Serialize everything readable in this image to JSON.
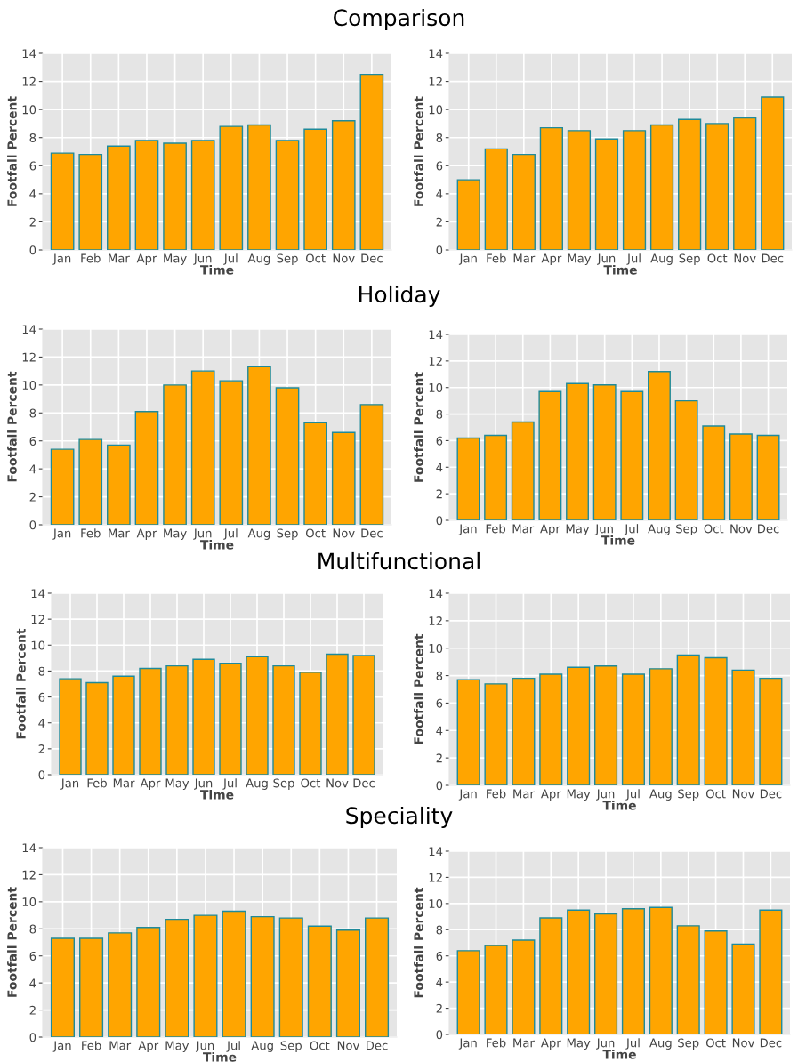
{
  "chart_data": [
    {
      "type": "bar",
      "title": "Comparison",
      "xlabel": "Time",
      "ylabel": "Footfall Percent",
      "categories": [
        "Jan",
        "Feb",
        "Mar",
        "Apr",
        "May",
        "Jun",
        "Jul",
        "Aug",
        "Sep",
        "Oct",
        "Nov",
        "Dec"
      ],
      "color": "#ffa500",
      "ylim": [
        0,
        14
      ],
      "yticks": [
        0,
        2,
        4,
        6,
        8,
        10,
        12,
        14
      ],
      "grid": true,
      "values": [
        6.9,
        6.8,
        7.4,
        7.8,
        7.6,
        7.8,
        8.8,
        8.9,
        7.8,
        8.6,
        9.2,
        12.5
      ]
    },
    {
      "type": "bar",
      "xlabel": "Time",
      "ylabel": "Footfall Percent",
      "categories": [
        "Jan",
        "Feb",
        "Mar",
        "Apr",
        "May",
        "Jun",
        "Jul",
        "Aug",
        "Sep",
        "Oct",
        "Nov",
        "Dec"
      ],
      "color": "#ffa500",
      "ylim": [
        0,
        14
      ],
      "yticks": [
        0,
        2,
        4,
        6,
        8,
        10,
        12,
        14
      ],
      "grid": true,
      "values": [
        5.0,
        7.2,
        6.8,
        8.7,
        8.5,
        7.9,
        8.5,
        8.9,
        9.3,
        9.0,
        9.4,
        10.9
      ]
    },
    {
      "type": "bar",
      "title": "Holiday",
      "xlabel": "Time",
      "ylabel": "Footfall Percent",
      "categories": [
        "Jan",
        "Feb",
        "Mar",
        "Apr",
        "May",
        "Jun",
        "Jul",
        "Aug",
        "Sep",
        "Oct",
        "Nov",
        "Dec"
      ],
      "color": "#ffa500",
      "ylim": [
        0,
        14
      ],
      "yticks": [
        0,
        2,
        4,
        6,
        8,
        10,
        12,
        14
      ],
      "grid": true,
      "values": [
        5.4,
        6.1,
        5.7,
        8.1,
        10.0,
        11.0,
        10.3,
        11.3,
        9.8,
        7.3,
        6.6,
        8.6
      ]
    },
    {
      "type": "bar",
      "xlabel": "Time",
      "ylabel": "Footfall Percent",
      "categories": [
        "Jan",
        "Feb",
        "Mar",
        "Apr",
        "May",
        "Jun",
        "Jul",
        "Aug",
        "Sep",
        "Oct",
        "Nov",
        "Dec"
      ],
      "color": "#ffa500",
      "ylim": [
        0,
        14
      ],
      "yticks": [
        0,
        2,
        4,
        6,
        8,
        10,
        12,
        14
      ],
      "grid": true,
      "values": [
        6.2,
        6.4,
        7.4,
        9.7,
        10.3,
        10.2,
        9.7,
        11.2,
        9.0,
        7.1,
        6.5,
        6.4
      ]
    },
    {
      "type": "bar",
      "title": "Multifunctional",
      "xlabel": "Time",
      "ylabel": "Footfall Percent",
      "categories": [
        "Jan",
        "Feb",
        "Mar",
        "Apr",
        "May",
        "Jun",
        "Jul",
        "Aug",
        "Sep",
        "Oct",
        "Nov",
        "Dec"
      ],
      "color": "#ffa500",
      "ylim": [
        0,
        14
      ],
      "yticks": [
        0,
        2,
        4,
        6,
        8,
        10,
        12,
        14
      ],
      "grid": true,
      "values": [
        7.4,
        7.1,
        7.6,
        8.2,
        8.4,
        8.9,
        8.6,
        9.1,
        8.4,
        7.9,
        9.3,
        9.2
      ]
    },
    {
      "type": "bar",
      "xlabel": "Time",
      "ylabel": "Footfall Percent",
      "categories": [
        "Jan",
        "Feb",
        "Mar",
        "Apr",
        "May",
        "Jun",
        "Jul",
        "Aug",
        "Sep",
        "Oct",
        "Nov",
        "Dec"
      ],
      "color": "#ffa500",
      "ylim": [
        0,
        14
      ],
      "yticks": [
        0,
        2,
        4,
        6,
        8,
        10,
        12,
        14
      ],
      "grid": true,
      "values": [
        7.7,
        7.4,
        7.8,
        8.1,
        8.6,
        8.7,
        8.1,
        8.5,
        9.5,
        9.3,
        8.4,
        7.8
      ]
    },
    {
      "type": "bar",
      "title": "Speciality",
      "xlabel": "Time",
      "ylabel": "Footfall Percent",
      "categories": [
        "Jan",
        "Feb",
        "Mar",
        "Apr",
        "May",
        "Jun",
        "Jul",
        "Aug",
        "Sep",
        "Oct",
        "Nov",
        "Dec"
      ],
      "color": "#ffa500",
      "ylim": [
        0,
        14
      ],
      "yticks": [
        0,
        2,
        4,
        6,
        8,
        10,
        12,
        14
      ],
      "grid": true,
      "values": [
        7.3,
        7.3,
        7.7,
        8.1,
        8.7,
        9.0,
        9.3,
        8.9,
        8.8,
        8.2,
        7.9,
        8.8
      ]
    },
    {
      "type": "bar",
      "xlabel": "Time",
      "ylabel": "Footfall Percent",
      "categories": [
        "Jan",
        "Feb",
        "Mar",
        "Apr",
        "May",
        "Jun",
        "Jul",
        "Aug",
        "Sep",
        "Oct",
        "Nov",
        "Dec"
      ],
      "color": "#ffa500",
      "ylim": [
        0,
        14
      ],
      "yticks": [
        0,
        2,
        4,
        6,
        8,
        10,
        12,
        14
      ],
      "grid": true,
      "values": [
        6.4,
        6.8,
        7.2,
        8.9,
        9.5,
        9.2,
        9.6,
        9.7,
        8.3,
        7.9,
        6.9,
        9.5
      ]
    }
  ]
}
